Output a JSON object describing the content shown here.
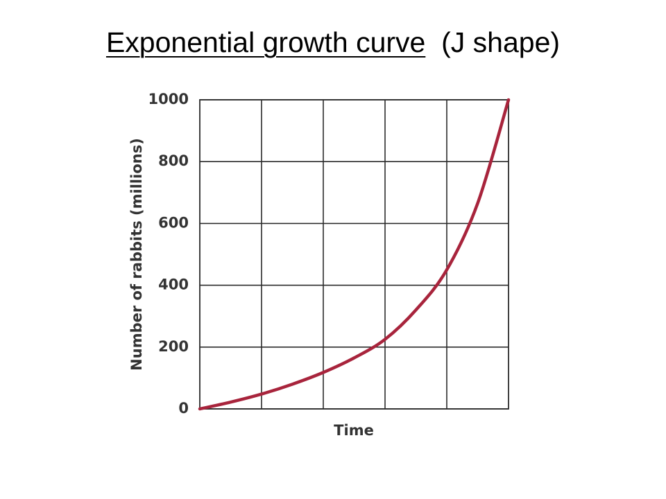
{
  "chart_data": {
    "type": "line",
    "title": "Exponential growth curve",
    "subtitle": "(J shape)",
    "x_label": "Time",
    "y_label": "Number of rabbits (millions)",
    "x": [
      0,
      0.5,
      1,
      1.5,
      2,
      2.5,
      3,
      3.5,
      4,
      4.5,
      5
    ],
    "series": [
      {
        "color": "#a8243c",
        "values": [
          0,
          22,
          48,
          80,
          118,
          165,
          225,
          320,
          450,
          665,
          1000
        ]
      }
    ],
    "xlim": [
      0,
      5
    ],
    "ylim": [
      0,
      1000
    ],
    "yticks": [
      0,
      200,
      400,
      600,
      800,
      1000
    ],
    "grid": true
  }
}
